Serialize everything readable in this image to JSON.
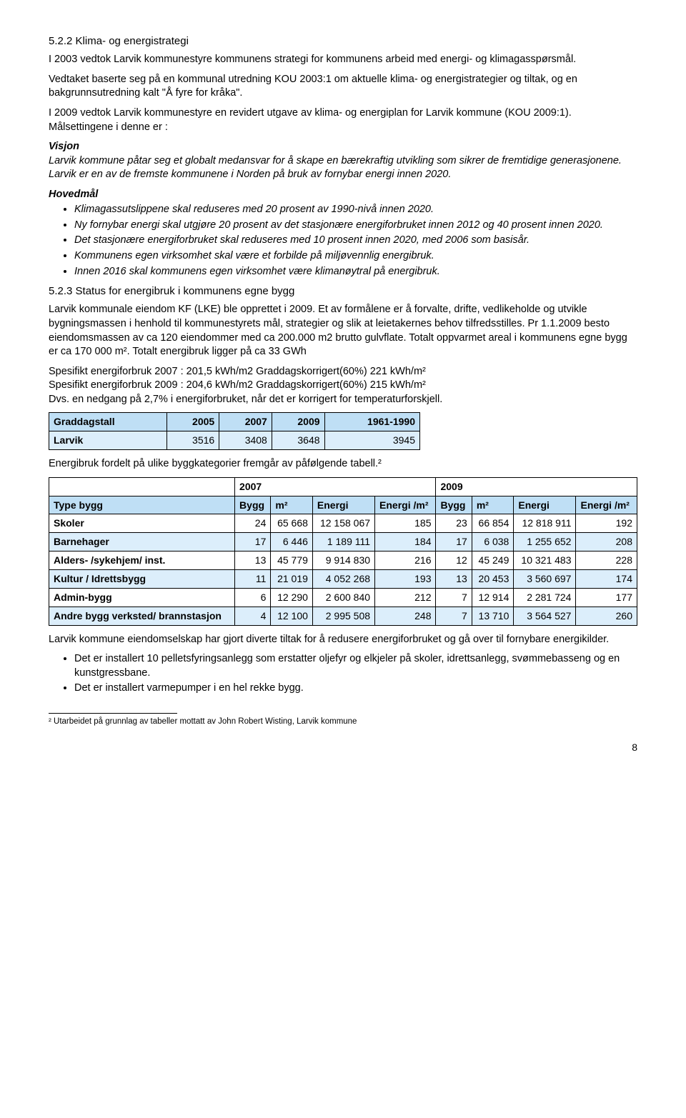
{
  "section1": {
    "heading": "5.2.2   Klima- og energistrategi",
    "p1": "I 2003 vedtok Larvik kommunestyre kommunens strategi for kommunens arbeid med energi- og klimagasspørsmål.",
    "p2": "Vedtaket baserte seg på en kommunal utredning KOU 2003:1 om aktuelle klima- og energistrategier og tiltak, og en bakgrunnsutredning kalt \"Å fyre for kråka\".",
    "p3": "I 2009 vedtok Larvik kommunestyre en revidert utgave av klima- og energiplan for Larvik kommune (KOU 2009:1). Målsettingene i denne er :",
    "vision_label": "Visjon",
    "vision_text": "Larvik kommune påtar seg et globalt medansvar for å skape en bærekraftig utvikling som sikrer de fremtidige generasjonene. Larvik er en av de fremste kommunene i Norden på bruk av fornybar energi innen 2020.",
    "main_label": "Hovedmål",
    "goals": [
      "Klimagassutslippene skal reduseres med 20 prosent av 1990-nivå innen 2020.",
      "Ny fornybar energi skal utgjøre 20 prosent av det stasjonære energiforbruket innen 2012 og 40 prosent innen 2020.",
      "Det stasjonære energiforbruket skal reduseres med 10 prosent innen 2020, med 2006 som basisår.",
      "Kommunens egen virksomhet skal være et forbilde på miljøvennlig energibruk.",
      "Innen 2016 skal kommunens egen virksomhet være klimanøytral på energibruk."
    ]
  },
  "section2": {
    "heading": "5.2.3   Status for energibruk i kommunens egne bygg",
    "p1": "Larvik kommunale eiendom KF (LKE) ble opprettet i 2009. Et av formålene er å forvalte, drifte, vedlikeholde og utvikle bygningsmassen i henhold til kommunestyrets mål, strategier og slik at leietakernes behov tilfredsstilles.  Pr 1.1.2009 besto eiendomsmassen av ca 120 eiendommer med ca 200.000 m2 brutto gulvflate. Totalt oppvarmet areal i kommunens egne bygg er ca  170 000 m². Totalt energibruk ligger på ca 33 GWh",
    "l1": "Spesifikt energiforbruk 2007 : 201,5 kWh/m2    Graddagskorrigert(60%) 221 kWh/m²",
    "l2": "Spesifikt energiforbruk 2009 : 204,6 kWh/m2    Graddagskorrigert(60%) 215 kWh/m²",
    "l3": "Dvs. en nedgang på 2,7% i energiforbruket, når det er korrigert for temperaturforskjell."
  },
  "table1": {
    "headers": [
      "Graddagstall",
      "2005",
      "2007",
      "2009",
      "1961-1990"
    ],
    "row_label": "Larvik",
    "row": [
      "3516",
      "3408",
      "3648",
      "3945"
    ]
  },
  "table2_intro": "Energibruk fordelt på ulike byggkategorier fremgår av påfølgende tabell.²",
  "table2": {
    "yr1": "2007",
    "yr2": "2009",
    "cols": [
      "Type bygg",
      "Bygg",
      "m²",
      "Energi",
      "Energi /m²",
      "Bygg",
      "m²",
      "Energi",
      "Energi /m²"
    ],
    "rows": [
      {
        "label": "Skoler",
        "cells": [
          "24",
          "65 668",
          "12 158 067",
          "185",
          "23",
          "66 854",
          "12 818 911",
          "192"
        ],
        "cls": "row-white"
      },
      {
        "label": "Barnehager",
        "cells": [
          "17",
          "6 446",
          "1 189 111",
          "184",
          "17",
          "6 038",
          "1 255 652",
          "208"
        ],
        "cls": "row-blue"
      },
      {
        "label": "Alders- /sykehjem/ inst.",
        "cells": [
          "13",
          "45 779",
          "9 914 830",
          "216",
          "12",
          "45 249",
          "10 321 483",
          "228"
        ],
        "cls": "row-white"
      },
      {
        "label": "Kultur / Idrettsbygg",
        "cells": [
          "11",
          "21 019",
          "4 052 268",
          "193",
          "13",
          "20 453",
          "3 560 697",
          "174"
        ],
        "cls": "row-blue"
      },
      {
        "label": "Admin-bygg",
        "cells": [
          "6",
          "12 290",
          "2 600 840",
          "212",
          "7",
          "12 914",
          "2 281 724",
          "177"
        ],
        "cls": "row-white"
      },
      {
        "label": "Andre bygg verksted/ brannstasjon",
        "cells": [
          "4",
          "12 100",
          "2 995 508",
          "248",
          "7",
          "13 710",
          "3 564 527",
          "260"
        ],
        "cls": "row-blue"
      }
    ]
  },
  "closing": {
    "p1": "Larvik kommune eiendomselskap har gjort diverte tiltak for å redusere energiforbruket og gå over til fornybare energikilder.",
    "bullets": [
      "Det er installert 10 pelletsfyringsanlegg som erstatter oljefyr og elkjeler på skoler, idrettsanlegg, svømmebasseng og en kunstgressbane.",
      "Det  er installert varmepumper i en hel rekke bygg."
    ]
  },
  "footnote": "² Utarbeidet på grunnlag av tabeller mottatt av John Robert Wisting, Larvik kommune",
  "pagenum": "8"
}
